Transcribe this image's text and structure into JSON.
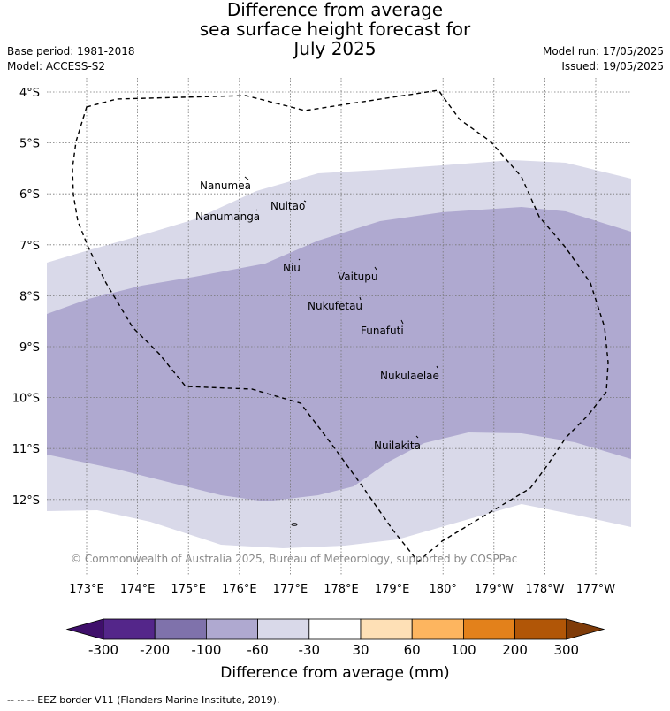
{
  "title": [
    "Difference from average",
    "sea surface height forecast for",
    "July 2025"
  ],
  "meta_left": [
    "Base period: 1981-2018",
    "Model: ACCESS-S2"
  ],
  "meta_right": [
    "Model run: 17/05/2025",
    "Issued: 19/05/2025"
  ],
  "lat_labels": [
    "4°S",
    "5°S",
    "6°S",
    "7°S",
    "8°S",
    "9°S",
    "10°S",
    "11°S",
    "12°S"
  ],
  "lon_labels": [
    "173°E",
    "174°E",
    "175°E",
    "176°E",
    "177°E",
    "178°E",
    "179°E",
    "180°",
    "179°W",
    "178°W",
    "177°W"
  ],
  "islands": [
    {
      "name": "Nanumea"
    },
    {
      "name": "Nuitao"
    },
    {
      "name": "Nanumanga"
    },
    {
      "name": "Niu"
    },
    {
      "name": "Vaitupu"
    },
    {
      "name": "Nukufetau"
    },
    {
      "name": "Funafuti"
    },
    {
      "name": "Nukulaelae"
    },
    {
      "name": "Nuilakita"
    }
  ],
  "copyright": "© Commonwealth of Australia 2025, Bureau of Meteorology, supported by COSPPac",
  "colorbar": {
    "title": "Difference from average (mm)",
    "ticks": [
      "-300",
      "-200",
      "-100",
      "-60",
      "-30",
      "30",
      "60",
      "100",
      "200",
      "300"
    ],
    "colors": [
      "#3f0f6b",
      "#54268a",
      "#7f72ab",
      "#afa9d0",
      "#d9d9e9",
      "#ffffff",
      "#fee0b6",
      "#fdb55f",
      "#e3811b",
      "#b15607",
      "#7f3b08"
    ]
  },
  "footer": "--  --  -- EEZ border V11 (Flanders Marine Institute, 2019)."
}
